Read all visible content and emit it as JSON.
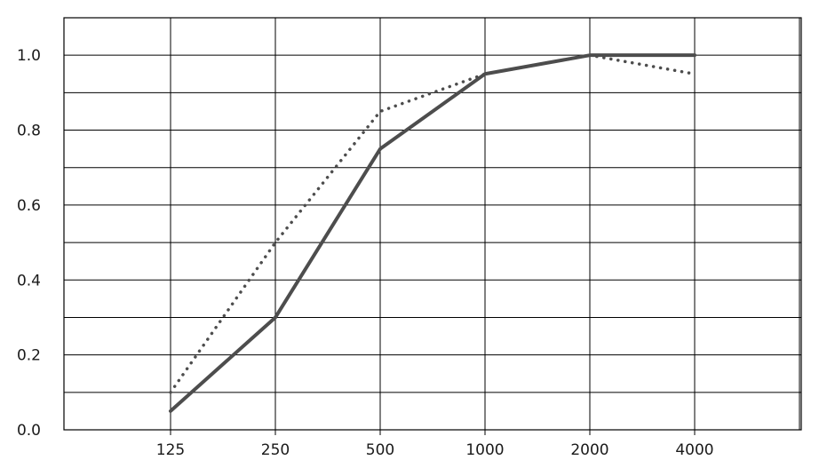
{
  "chart_data": {
    "type": "line",
    "categories": [
      "125",
      "250",
      "500",
      "1000",
      "2000",
      "4000"
    ],
    "series": [
      {
        "values": [
          0.05,
          0.3,
          0.75,
          0.95,
          1.0,
          1.0
        ],
        "style": "solid",
        "color": "#4d4d4d"
      },
      {
        "values": [
          0.1,
          0.5,
          0.85,
          0.95,
          1.0,
          0.95
        ],
        "style": "dotted",
        "color": "#4d4d4d"
      }
    ],
    "y_ticks": [
      "0.0",
      "0.2",
      "0.4",
      "0.6",
      "0.8",
      "1.0"
    ],
    "ylim": [
      0,
      1.1
    ],
    "grid": true,
    "legend": "none"
  }
}
